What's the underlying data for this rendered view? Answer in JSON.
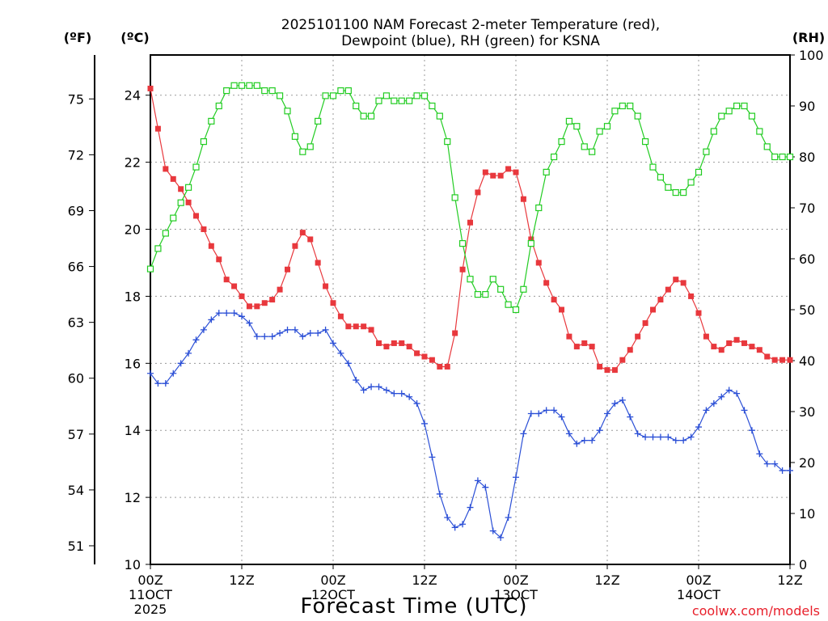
{
  "chart_data": {
    "type": "line",
    "title_lines": [
      "2025101100 NAM Forecast 2-meter Temperature (red),",
      "Dewpoint (blue), RH (green) for KSNA"
    ],
    "units": {
      "fahrenheit": "(ºF)",
      "celsius": "(ºC)",
      "rh": "(RH)"
    },
    "xlabel": "Forecast Time (UTC)",
    "credit": "coolwx.com/models",
    "x_ticks": [
      {
        "h": 0,
        "label": [
          "00Z",
          "11OCT",
          "2025"
        ]
      },
      {
        "h": 12,
        "label": [
          "12Z"
        ]
      },
      {
        "h": 24,
        "label": [
          "00Z",
          "12OCT"
        ]
      },
      {
        "h": 36,
        "label": [
          "12Z"
        ]
      },
      {
        "h": 48,
        "label": [
          "00Z",
          "13OCT"
        ]
      },
      {
        "h": 60,
        "label": [
          "12Z"
        ]
      },
      {
        "h": 72,
        "label": [
          "00Z",
          "14OCT"
        ]
      },
      {
        "h": 84,
        "label": [
          "12Z"
        ]
      }
    ],
    "xlim": [
      0,
      84
    ],
    "x_step_hours": 1,
    "ylim_c": [
      10,
      25.2
    ],
    "y_ticks_c": [
      "10",
      "12",
      "14",
      "16",
      "18",
      "20",
      "22",
      "24"
    ],
    "y_ticks_f": [
      "51",
      "54",
      "57",
      "60",
      "63",
      "66",
      "69",
      "72",
      "75"
    ],
    "ylim_rh": [
      0,
      100
    ],
    "y_ticks_rh": [
      "0",
      "10",
      "20",
      "30",
      "40",
      "50",
      "60",
      "70",
      "80",
      "90",
      "100"
    ],
    "grid": true,
    "series": [
      {
        "name": "Temperature",
        "axis": "c",
        "color": "#e8383d",
        "marker": "filled-square",
        "values": [
          24.2,
          23.0,
          21.8,
          21.5,
          21.2,
          20.8,
          20.4,
          20.0,
          19.5,
          19.1,
          18.5,
          18.3,
          18.0,
          17.7,
          17.7,
          17.8,
          17.9,
          18.2,
          18.8,
          19.5,
          19.9,
          19.7,
          19.0,
          18.3,
          17.8,
          17.4,
          17.1,
          17.1,
          17.1,
          17.0,
          16.6,
          16.5,
          16.6,
          16.6,
          16.5,
          16.3,
          16.2,
          16.1,
          15.9,
          15.9,
          16.9,
          18.8,
          20.2,
          21.1,
          21.7,
          21.6,
          21.6,
          21.8,
          21.7,
          20.9,
          19.7,
          19.0,
          18.4,
          17.9,
          17.6,
          16.8,
          16.5,
          16.6,
          16.5,
          15.9,
          15.8,
          15.8,
          16.1,
          16.4,
          16.8,
          17.2,
          17.6,
          17.9,
          18.2,
          18.5,
          18.4,
          18.0,
          17.5,
          16.8,
          16.5,
          16.4,
          16.6,
          16.7,
          16.6,
          16.5,
          16.4,
          16.2,
          16.1,
          16.1,
          16.1
        ]
      },
      {
        "name": "Dewpoint",
        "axis": "c",
        "color": "#2b4fd6",
        "marker": "plus",
        "values": [
          15.7,
          15.4,
          15.4,
          15.7,
          16.0,
          16.3,
          16.7,
          17.0,
          17.3,
          17.5,
          17.5,
          17.5,
          17.4,
          17.2,
          16.8,
          16.8,
          16.8,
          16.9,
          17.0,
          17.0,
          16.8,
          16.9,
          16.9,
          17.0,
          16.6,
          16.3,
          16.0,
          15.5,
          15.2,
          15.3,
          15.3,
          15.2,
          15.1,
          15.1,
          15.0,
          14.8,
          14.2,
          13.2,
          12.1,
          11.4,
          11.1,
          11.2,
          11.7,
          12.5,
          12.3,
          11.0,
          10.8,
          11.4,
          12.6,
          13.9,
          14.5,
          14.5,
          14.6,
          14.6,
          14.4,
          13.9,
          13.6,
          13.7,
          13.7,
          14.0,
          14.5,
          14.8,
          14.9,
          14.4,
          13.9,
          13.8,
          13.8,
          13.8,
          13.8,
          13.7,
          13.7,
          13.8,
          14.1,
          14.6,
          14.8,
          15.0,
          15.2,
          15.1,
          14.6,
          14.0,
          13.3,
          13.0,
          13.0,
          12.8,
          12.8
        ]
      },
      {
        "name": "RH",
        "axis": "rh",
        "color": "#22cc22",
        "marker": "open-square",
        "values": [
          58,
          62,
          65,
          68,
          71,
          74,
          78,
          83,
          87,
          90,
          93,
          94,
          94,
          94,
          94,
          93,
          93,
          92,
          89,
          84,
          81,
          82,
          87,
          92,
          92,
          93,
          93,
          90,
          88,
          88,
          91,
          92,
          91,
          91,
          91,
          92,
          92,
          90,
          88,
          83,
          72,
          63,
          56,
          53,
          53,
          56,
          54,
          51,
          50,
          54,
          63,
          70,
          77,
          80,
          83,
          87,
          86,
          82,
          81,
          85,
          86,
          89,
          90,
          90,
          88,
          83,
          78,
          76,
          74,
          73,
          73,
          75,
          77,
          81,
          85,
          88,
          89,
          90,
          90,
          88,
          85,
          82,
          80,
          80,
          80
        ]
      }
    ]
  }
}
